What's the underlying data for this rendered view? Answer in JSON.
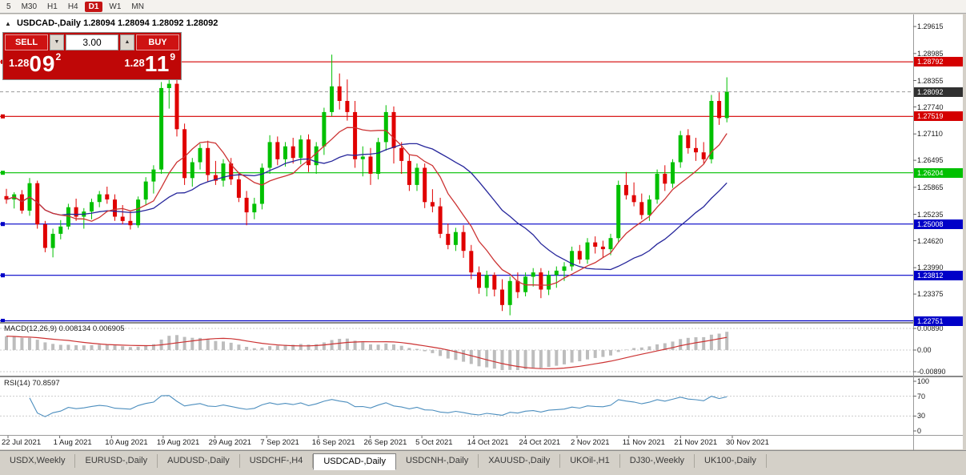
{
  "toolbar": {
    "periods": [
      "5",
      "M30",
      "H1",
      "H4",
      "D1",
      "W1",
      "MN"
    ],
    "active_period": "D1"
  },
  "chart_header": {
    "collapse_icon": "▲",
    "symbol_title": "USDCAD-,Daily",
    "ohlc": "1.28094 1.28094 1.28092 1.28092"
  },
  "trade_panel": {
    "sell_label": "SELL",
    "buy_label": "BUY",
    "volume": "3.00",
    "volume_down_icon": "▼",
    "volume_up_icon": "▲",
    "bid": {
      "head": "1.28",
      "big": "09",
      "sup": "2"
    },
    "ask": {
      "head": "1.28",
      "big": "11",
      "sup": "9"
    }
  },
  "indicators": {
    "macd_label": "MACD(12,26,9) 0.008134 0.006905",
    "macd_levels": [
      "0.00890",
      "0.00",
      "-0.00890"
    ],
    "rsi_label": "RSI(14) 70.8597",
    "rsi_levels": [
      "100",
      "70",
      "30",
      "0"
    ]
  },
  "date_axis": {
    "labels": [
      "22 Jul 2021",
      "1 Aug 2021",
      "10 Aug 2021",
      "19 Aug 2021",
      "29 Aug 2021",
      "7 Sep 2021",
      "16 Sep 2021",
      "26 Sep 2021",
      "5 Oct 2021",
      "14 Oct 2021",
      "24 Oct 2021",
      "2 Nov 2021",
      "11 Nov 2021",
      "21 Nov 2021",
      "30 Nov 2021"
    ]
  },
  "tabs": {
    "items": [
      "USDX,Weekly",
      "EURUSD-,Daily",
      "AUDUSD-,Daily",
      "USDCHF-,H4",
      "USDCAD-,Daily",
      "USDCNH-,Daily",
      "XAUUSD-,Daily",
      "UKOil-,H1",
      "DJ30-,Weekly",
      "UK100-,Daily"
    ],
    "active_index": 4
  },
  "chart_data": {
    "type": "candlestick",
    "symbol": "USDCAD",
    "timeframe": "Daily",
    "y_range": [
      1.2276,
      1.2986
    ],
    "bid_price": 1.28092,
    "price_axis_ticks": [
      1.29615,
      1.28985,
      1.28355,
      1.2774,
      1.2711,
      1.26495,
      1.25865,
      1.25235,
      1.2462,
      1.2399,
      1.23375,
      1.22745
    ],
    "hlines": [
      {
        "price": 1.28792,
        "color": "#D40000"
      },
      {
        "price": 1.27519,
        "color": "#D40000"
      },
      {
        "price": 1.26204,
        "color": "#00C000"
      },
      {
        "price": 1.25008,
        "color": "#0000C8"
      },
      {
        "price": 1.23812,
        "color": "#0000C8"
      },
      {
        "price": 1.22751,
        "color": "#0000C8"
      }
    ],
    "bid_tag_color": "#303030",
    "colors": {
      "up": "#00C000",
      "down": "#E00000",
      "ma_fast": "#CC3333",
      "ma_slow": "#26269B",
      "macd_bar": "#BDBDBD",
      "macd_signal": "#CC3333",
      "rsi": "#4C8EBE"
    },
    "ma_fast_period": 8,
    "ma_slow_period": 20,
    "macd": {
      "fast": 12,
      "slow": 26,
      "signal": 9,
      "current": 0.008134,
      "current_signal": 0.006905,
      "scale_max": 0.0089
    },
    "rsi": {
      "period": 14,
      "current": 70.8597,
      "levels": [
        70,
        30
      ]
    },
    "candles": [
      [
        "2021-07-22",
        1.2566,
        1.2583,
        1.2548,
        1.2558
      ],
      [
        "2021-07-23",
        1.2558,
        1.2575,
        1.2537,
        1.257
      ],
      [
        "2021-07-26",
        1.257,
        1.258,
        1.2525,
        1.2532
      ],
      [
        "2021-07-27",
        1.2532,
        1.2608,
        1.252,
        1.2596
      ],
      [
        "2021-07-28",
        1.2596,
        1.2602,
        1.249,
        1.25
      ],
      [
        "2021-07-29",
        1.25,
        1.2508,
        1.2435,
        1.2445
      ],
      [
        "2021-07-30",
        1.2445,
        1.249,
        1.2423,
        1.2478
      ],
      [
        "2021-08-02",
        1.2478,
        1.251,
        1.2465,
        1.2495
      ],
      [
        "2021-08-03",
        1.2495,
        1.2548,
        1.2488,
        1.254
      ],
      [
        "2021-08-04",
        1.254,
        1.256,
        1.2508,
        1.2518
      ],
      [
        "2021-08-05",
        1.2518,
        1.2538,
        1.249,
        1.253
      ],
      [
        "2021-08-06",
        1.253,
        1.256,
        1.2512,
        1.2552
      ],
      [
        "2021-08-09",
        1.2552,
        1.2578,
        1.254,
        1.257
      ],
      [
        "2021-08-10",
        1.257,
        1.2588,
        1.2548,
        1.2558
      ],
      [
        "2021-08-11",
        1.2558,
        1.257,
        1.2508,
        1.2518
      ],
      [
        "2021-08-12",
        1.2518,
        1.2545,
        1.25,
        1.2508
      ],
      [
        "2021-08-13",
        1.2508,
        1.253,
        1.2488,
        1.2498
      ],
      [
        "2021-08-16",
        1.2498,
        1.2565,
        1.2492,
        1.2558
      ],
      [
        "2021-08-17",
        1.2558,
        1.261,
        1.2545,
        1.26
      ],
      [
        "2021-08-18",
        1.26,
        1.2638,
        1.2572,
        1.2628
      ],
      [
        "2021-08-19",
        1.2628,
        1.2832,
        1.2618,
        1.2818
      ],
      [
        "2021-08-20",
        1.2818,
        1.2846,
        1.277,
        1.2828
      ],
      [
        "2021-08-23",
        1.2828,
        1.2838,
        1.2705,
        1.2722
      ],
      [
        "2021-08-24",
        1.2722,
        1.2735,
        1.2592,
        1.2608
      ],
      [
        "2021-08-25",
        1.2608,
        1.2655,
        1.2588,
        1.2645
      ],
      [
        "2021-08-26",
        1.2645,
        1.2688,
        1.2628,
        1.2678
      ],
      [
        "2021-08-27",
        1.2678,
        1.2695,
        1.26,
        1.2615
      ],
      [
        "2021-08-30",
        1.2615,
        1.2648,
        1.2592,
        1.2602
      ],
      [
        "2021-08-31",
        1.2602,
        1.2652,
        1.2588,
        1.2642
      ],
      [
        "2021-09-01",
        1.2642,
        1.2655,
        1.2592,
        1.2605
      ],
      [
        "2021-09-02",
        1.2605,
        1.2622,
        1.2552,
        1.2562
      ],
      [
        "2021-09-03",
        1.2562,
        1.2578,
        1.2498,
        1.2528
      ],
      [
        "2021-09-06",
        1.2528,
        1.2562,
        1.2512,
        1.2548
      ],
      [
        "2021-09-07",
        1.2548,
        1.2642,
        1.2535,
        1.2632
      ],
      [
        "2021-09-08",
        1.2632,
        1.2708,
        1.2618,
        1.2692
      ],
      [
        "2021-09-09",
        1.2692,
        1.2705,
        1.2638,
        1.2652
      ],
      [
        "2021-09-10",
        1.2652,
        1.2692,
        1.2635,
        1.2682
      ],
      [
        "2021-09-13",
        1.2682,
        1.2702,
        1.2642,
        1.2655
      ],
      [
        "2021-09-14",
        1.2655,
        1.2708,
        1.264,
        1.2698
      ],
      [
        "2021-09-15",
        1.2698,
        1.271,
        1.2622,
        1.2638
      ],
      [
        "2021-09-16",
        1.2638,
        1.2692,
        1.2618,
        1.2682
      ],
      [
        "2021-09-17",
        1.2682,
        1.2772,
        1.2662,
        1.2762
      ],
      [
        "2021-09-20",
        1.2762,
        1.2896,
        1.2752,
        1.2822
      ],
      [
        "2021-09-21",
        1.2822,
        1.2852,
        1.2768,
        1.2788
      ],
      [
        "2021-09-22",
        1.2788,
        1.2838,
        1.2742,
        1.2762
      ],
      [
        "2021-09-23",
        1.2762,
        1.2788,
        1.2632,
        1.2652
      ],
      [
        "2021-09-24",
        1.2652,
        1.2682,
        1.2612,
        1.2658
      ],
      [
        "2021-09-27",
        1.2658,
        1.2678,
        1.2592,
        1.2618
      ],
      [
        "2021-09-28",
        1.2618,
        1.2702,
        1.2605,
        1.2692
      ],
      [
        "2021-09-29",
        1.2692,
        1.2778,
        1.2672,
        1.2762
      ],
      [
        "2021-09-30",
        1.2762,
        1.2775,
        1.2642,
        1.2678
      ],
      [
        "2021-10-01",
        1.2678,
        1.2692,
        1.2618,
        1.2648
      ],
      [
        "2021-10-04",
        1.2648,
        1.2662,
        1.2578,
        1.2592
      ],
      [
        "2021-10-05",
        1.2592,
        1.2642,
        1.2578,
        1.2632
      ],
      [
        "2021-10-06",
        1.2632,
        1.2642,
        1.2538,
        1.2552
      ],
      [
        "2021-10-07",
        1.2552,
        1.2582,
        1.2528,
        1.2542
      ],
      [
        "2021-10-08",
        1.2542,
        1.2562,
        1.2468,
        1.2478
      ],
      [
        "2021-10-11",
        1.2478,
        1.2502,
        1.2442,
        1.2452
      ],
      [
        "2021-10-12",
        1.2452,
        1.2492,
        1.2438,
        1.2482
      ],
      [
        "2021-10-13",
        1.2482,
        1.2498,
        1.2422,
        1.2438
      ],
      [
        "2021-10-14",
        1.2438,
        1.2452,
        1.2372,
        1.2388
      ],
      [
        "2021-10-15",
        1.2388,
        1.2402,
        1.2338,
        1.2352
      ],
      [
        "2021-10-18",
        1.2352,
        1.2392,
        1.2332,
        1.2382
      ],
      [
        "2021-10-19",
        1.2382,
        1.2388,
        1.2332,
        1.2348
      ],
      [
        "2021-10-20",
        1.2348,
        1.2372,
        1.2298,
        1.2312
      ],
      [
        "2021-10-21",
        1.2312,
        1.2378,
        1.2288,
        1.2368
      ],
      [
        "2021-10-22",
        1.2368,
        1.2388,
        1.2328,
        1.2342
      ],
      [
        "2021-10-25",
        1.2342,
        1.2388,
        1.2332,
        1.2378
      ],
      [
        "2021-10-26",
        1.2378,
        1.2398,
        1.2355,
        1.2388
      ],
      [
        "2021-10-27",
        1.2388,
        1.2398,
        1.2328,
        1.2348
      ],
      [
        "2021-10-28",
        1.2348,
        1.2392,
        1.2335,
        1.2382
      ],
      [
        "2021-10-29",
        1.2382,
        1.2402,
        1.2352,
        1.2392
      ],
      [
        "2021-11-01",
        1.2392,
        1.2412,
        1.2368,
        1.2402
      ],
      [
        "2021-11-02",
        1.2402,
        1.2448,
        1.2392,
        1.2438
      ],
      [
        "2021-11-03",
        1.2438,
        1.2452,
        1.2408,
        1.2418
      ],
      [
        "2021-11-04",
        1.2418,
        1.2468,
        1.2408,
        1.2458
      ],
      [
        "2021-11-05",
        1.2458,
        1.2472,
        1.2432,
        1.2448
      ],
      [
        "2021-11-08",
        1.2448,
        1.2462,
        1.2422,
        1.2442
      ],
      [
        "2021-11-09",
        1.2442,
        1.2478,
        1.2428,
        1.2468
      ],
      [
        "2021-11-10",
        1.2468,
        1.2602,
        1.2458,
        1.2592
      ],
      [
        "2021-11-11",
        1.2592,
        1.2622,
        1.2558,
        1.2568
      ],
      [
        "2021-11-12",
        1.2568,
        1.2598,
        1.2542,
        1.2552
      ],
      [
        "2021-11-15",
        1.2552,
        1.2572,
        1.2512,
        1.2522
      ],
      [
        "2021-11-16",
        1.2522,
        1.2568,
        1.2508,
        1.2558
      ],
      [
        "2021-11-17",
        1.2558,
        1.2628,
        1.2548,
        1.2618
      ],
      [
        "2021-11-18",
        1.2618,
        1.2638,
        1.2578,
        1.2595
      ],
      [
        "2021-11-19",
        1.2595,
        1.2652,
        1.2585,
        1.2645
      ],
      [
        "2021-11-22",
        1.2645,
        1.2718,
        1.2632,
        1.2708
      ],
      [
        "2021-11-23",
        1.2708,
        1.2722,
        1.2665,
        1.2678
      ],
      [
        "2021-11-24",
        1.2678,
        1.2702,
        1.2648,
        1.2668
      ],
      [
        "2021-11-25",
        1.2668,
        1.2692,
        1.2642,
        1.2652
      ],
      [
        "2021-11-26",
        1.2652,
        1.2802,
        1.2642,
        1.2788
      ],
      [
        "2021-11-29",
        1.2788,
        1.2808,
        1.2732,
        1.2748
      ],
      [
        "2021-11-30",
        1.2748,
        1.2843,
        1.2738,
        1.28092
      ]
    ]
  }
}
